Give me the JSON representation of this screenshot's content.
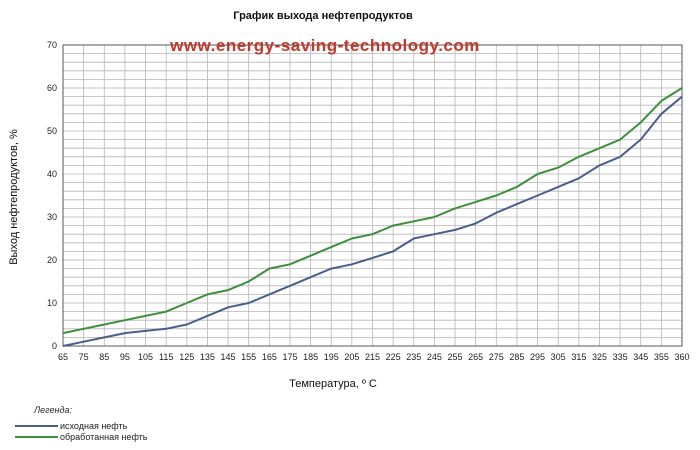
{
  "chart_data": {
    "type": "line",
    "title": "График выхода нефтепродуктов",
    "watermark": "www.energy-saving-technology.com",
    "watermark_color": "#c0392b",
    "xlabel": "Температура, º С",
    "ylabel": "Выход    нефтепродуктов,  %",
    "categories": [
      "65",
      "75",
      "85",
      "95",
      "105",
      "115",
      "125",
      "135",
      "145",
      "155",
      "165",
      "175",
      "185",
      "195",
      "205",
      "215",
      "225",
      "235",
      "245",
      "255",
      "265",
      "275",
      "285",
      "295",
      "305",
      "315",
      "325",
      "335",
      "345",
      "355",
      "360"
    ],
    "ylim": [
      0,
      70
    ],
    "yticks": [
      "0",
      "10",
      "20",
      "30",
      "40",
      "50",
      "60",
      "70"
    ],
    "grid": true,
    "legend_title": "Легенда:",
    "legend_position": "bottom-left",
    "series": [
      {
        "name": "исходная нефть",
        "color": "#4a5e8c",
        "values": [
          0,
          1,
          2,
          3,
          3.5,
          4,
          5,
          7,
          9,
          10,
          12,
          14,
          16,
          18,
          19,
          20.5,
          22,
          25,
          26,
          27,
          28.5,
          31,
          33,
          35,
          37,
          39,
          42,
          44,
          48,
          54,
          58
        ]
      },
      {
        "name": "обработанная нефть",
        "color": "#3d8f3d",
        "values": [
          3,
          4,
          5,
          6,
          7,
          8,
          10,
          12,
          13,
          15,
          18,
          19,
          21,
          23,
          25,
          26,
          28,
          29,
          30,
          32,
          33.5,
          35,
          37,
          40,
          41.5,
          44,
          46,
          48,
          52,
          57,
          60
        ]
      }
    ]
  }
}
